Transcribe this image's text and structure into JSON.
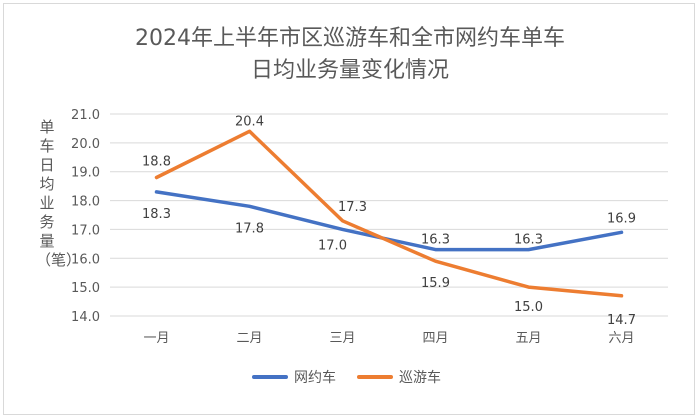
{
  "title_line1": "2024年上半年市区巡游车和全市网约车单车",
  "title_line2": "日均业务量变化情况",
  "chart_data": {
    "type": "line",
    "title": "2024年上半年市区巡游车和全市网约车单车日均业务量变化情况",
    "ylabel": "单车日均业务量（笔）",
    "xlabel": "",
    "categories": [
      "一月",
      "二月",
      "三月",
      "四月",
      "五月",
      "六月"
    ],
    "ylim": [
      14.0,
      21.0
    ],
    "yticks": [
      "14.0",
      "15.0",
      "16.0",
      "17.0",
      "18.0",
      "19.0",
      "20.0",
      "21.0"
    ],
    "grid": true,
    "legend_position": "bottom",
    "series": [
      {
        "name": "网约车",
        "color": "#4472c4",
        "values": [
          18.3,
          17.8,
          17.0,
          16.3,
          16.3,
          16.9
        ],
        "labels": [
          "18.3",
          "17.8",
          "17.0",
          "16.3",
          "16.3",
          "16.9"
        ]
      },
      {
        "name": "巡游车",
        "color": "#ed7d31",
        "values": [
          18.8,
          20.4,
          17.3,
          15.9,
          15.0,
          14.7
        ],
        "labels": [
          "18.8",
          "20.4",
          "17.3",
          "15.9",
          "15.0",
          "14.7"
        ]
      }
    ]
  }
}
